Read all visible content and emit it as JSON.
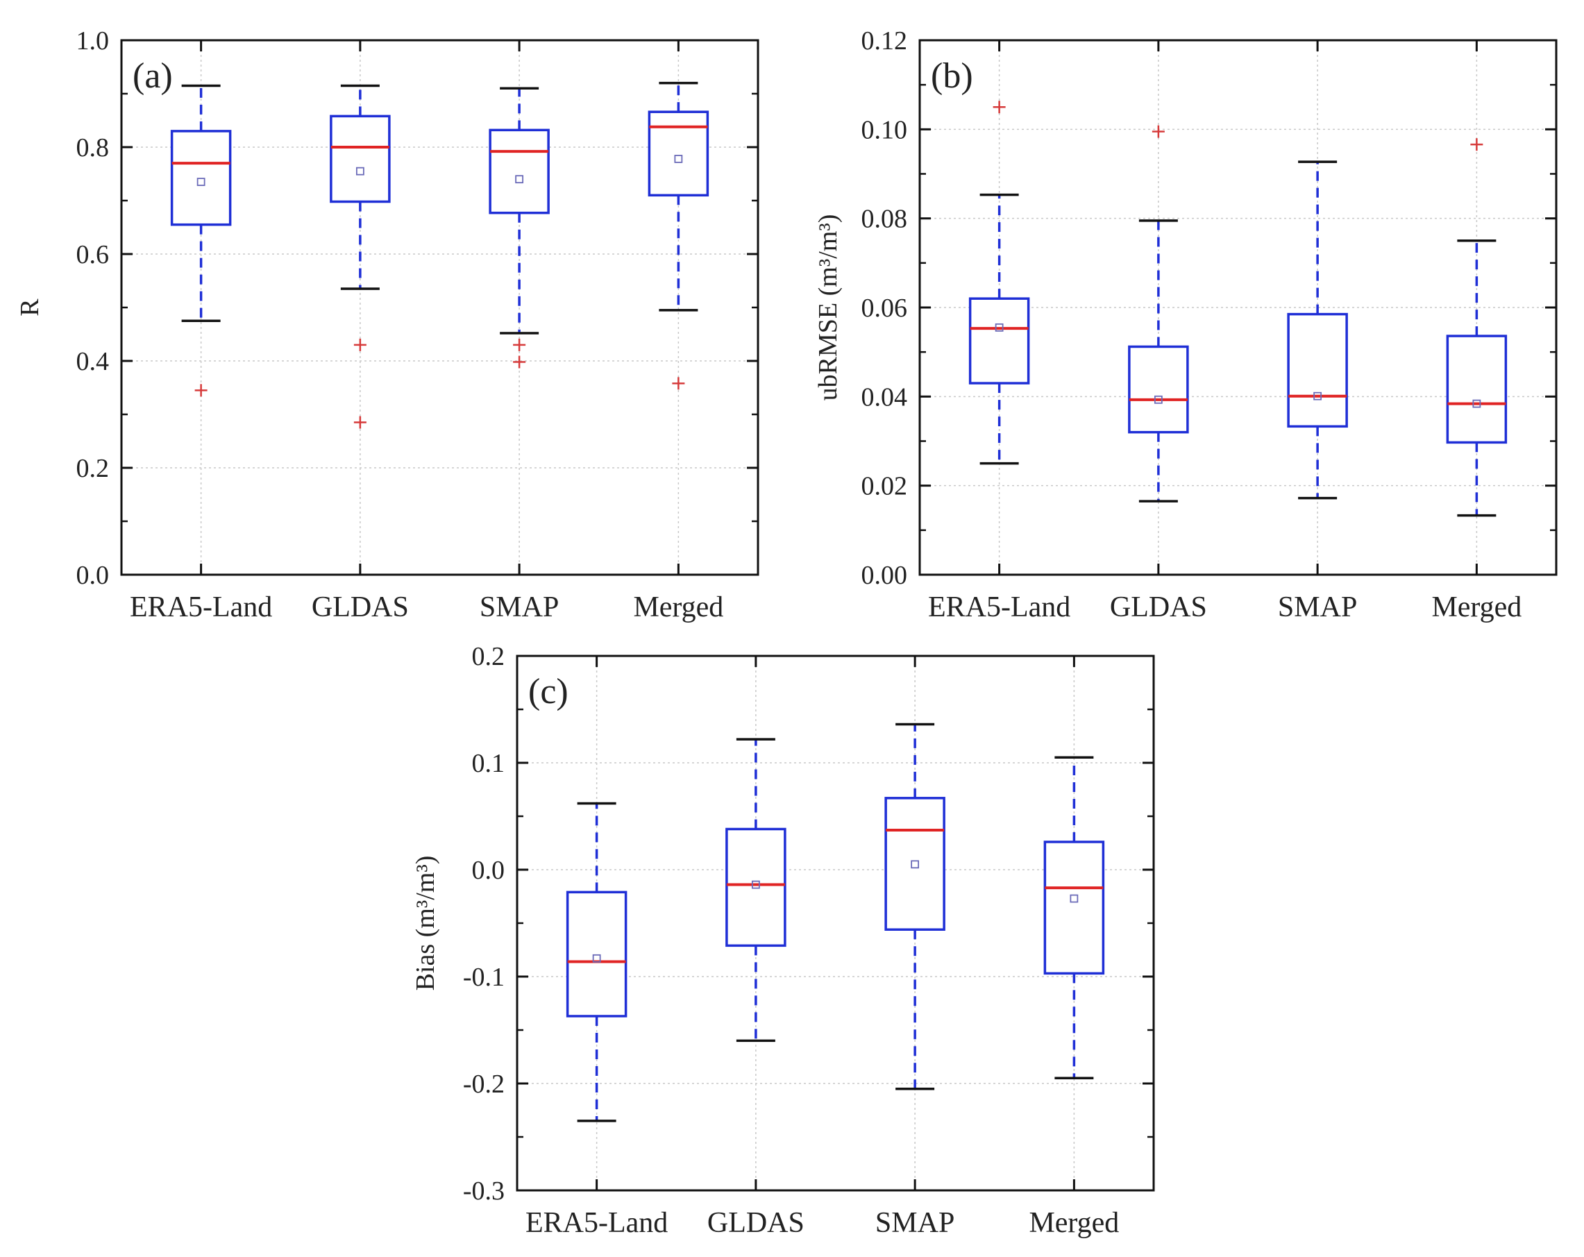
{
  "colors": {
    "box": "#1f2fd6",
    "median": "#e02424",
    "outlier": "#d63a3a",
    "whisker_cap": "#111111",
    "grid": "#c8c8c8",
    "mean": "#6a6ab8"
  },
  "chart_data": [
    {
      "id": "a",
      "type": "box",
      "panel_label": "(a)",
      "ylabel": "R",
      "xlabel": "",
      "ylim": [
        0,
        1
      ],
      "yticks": [
        0.0,
        0.2,
        0.4,
        0.6,
        0.8,
        1.0
      ],
      "ytick_labels": [
        "0.0",
        "0.2",
        "0.4",
        "0.6",
        "0.8",
        "1.0"
      ],
      "categories": [
        "ERA5-Land",
        "GLDAS",
        "SMAP",
        "Merged"
      ],
      "boxes": [
        {
          "whisker_low": 0.475,
          "q1": 0.655,
          "median": 0.77,
          "q3": 0.83,
          "whisker_high": 0.915,
          "mean": 0.735,
          "outliers": [
            0.345
          ]
        },
        {
          "whisker_low": 0.535,
          "q1": 0.698,
          "median": 0.8,
          "q3": 0.858,
          "whisker_high": 0.915,
          "mean": 0.755,
          "outliers": [
            0.43,
            0.285
          ]
        },
        {
          "whisker_low": 0.452,
          "q1": 0.677,
          "median": 0.792,
          "q3": 0.832,
          "whisker_high": 0.91,
          "mean": 0.74,
          "outliers": [
            0.43,
            0.398
          ]
        },
        {
          "whisker_low": 0.495,
          "q1": 0.71,
          "median": 0.838,
          "q3": 0.866,
          "whisker_high": 0.92,
          "mean": 0.778,
          "outliers": [
            0.358
          ]
        }
      ],
      "grid": true
    },
    {
      "id": "b",
      "type": "box",
      "panel_label": "(b)",
      "ylabel": "ubRMSE (m³/m³)",
      "xlabel": "",
      "ylim": [
        0,
        0.12
      ],
      "yticks": [
        0.0,
        0.02,
        0.04,
        0.06,
        0.08,
        0.1,
        0.12
      ],
      "ytick_labels": [
        "0.00",
        "0.02",
        "0.04",
        "0.06",
        "0.08",
        "0.10",
        "0.12"
      ],
      "categories": [
        "ERA5-Land",
        "GLDAS",
        "SMAP",
        "Merged"
      ],
      "boxes": [
        {
          "whisker_low": 0.025,
          "q1": 0.043,
          "median": 0.0553,
          "q3": 0.062,
          "whisker_high": 0.0853,
          "mean": 0.0555,
          "outliers": [
            0.105
          ]
        },
        {
          "whisker_low": 0.0165,
          "q1": 0.032,
          "median": 0.0393,
          "q3": 0.0512,
          "whisker_high": 0.0795,
          "mean": 0.0393,
          "outliers": [
            0.0995
          ]
        },
        {
          "whisker_low": 0.0172,
          "q1": 0.0333,
          "median": 0.0401,
          "q3": 0.0585,
          "whisker_high": 0.0927,
          "mean": 0.0401,
          "outliers": []
        },
        {
          "whisker_low": 0.0133,
          "q1": 0.0297,
          "median": 0.0384,
          "q3": 0.0536,
          "whisker_high": 0.075,
          "mean": 0.0384,
          "outliers": [
            0.0966
          ]
        }
      ],
      "grid": true
    },
    {
      "id": "c",
      "type": "box",
      "panel_label": "(c)",
      "ylabel": "Bias (m³/m³)",
      "xlabel": "",
      "ylim": [
        -0.3,
        0.2
      ],
      "yticks": [
        -0.3,
        -0.2,
        -0.1,
        0.0,
        0.1,
        0.2
      ],
      "ytick_labels": [
        "-0.3",
        "-0.2",
        "-0.1",
        "0.0",
        "0.1",
        "0.2"
      ],
      "categories": [
        "ERA5-Land",
        "GLDAS",
        "SMAP",
        "Merged"
      ],
      "boxes": [
        {
          "whisker_low": -0.235,
          "q1": -0.137,
          "median": -0.086,
          "q3": -0.021,
          "whisker_high": 0.062,
          "mean": -0.083,
          "outliers": []
        },
        {
          "whisker_low": -0.16,
          "q1": -0.071,
          "median": -0.014,
          "q3": 0.038,
          "whisker_high": 0.122,
          "mean": -0.014,
          "outliers": []
        },
        {
          "whisker_low": -0.205,
          "q1": -0.056,
          "median": 0.037,
          "q3": 0.067,
          "whisker_high": 0.136,
          "mean": 0.005,
          "outliers": []
        },
        {
          "whisker_low": -0.195,
          "q1": -0.097,
          "median": -0.017,
          "q3": 0.026,
          "whisker_high": 0.105,
          "mean": -0.027,
          "outliers": []
        }
      ],
      "grid": true
    }
  ]
}
